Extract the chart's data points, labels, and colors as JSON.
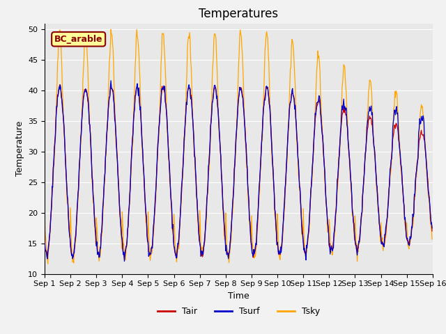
{
  "title": "Temperatures",
  "xlabel": "Time",
  "ylabel": "Temperature",
  "ylim": [
    10,
    51
  ],
  "annotation": "BC_arable",
  "bg_color": "#e8e8e8",
  "fig_color": "#f2f2f2",
  "tair_color": "#cc0000",
  "tsurf_color": "#0000cc",
  "tsky_color": "#ffa500",
  "legend_labels": [
    "Tair",
    "Tsurf",
    "Tsky"
  ],
  "title_fontsize": 12,
  "label_fontsize": 9,
  "tick_fontsize": 8,
  "yticks": [
    10,
    15,
    20,
    25,
    30,
    35,
    40,
    45,
    50
  ]
}
